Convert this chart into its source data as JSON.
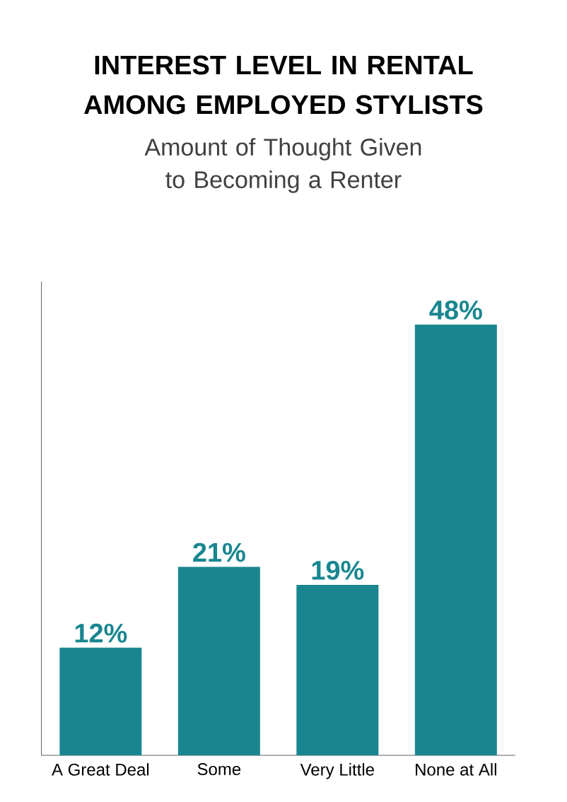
{
  "chart_data": {
    "type": "bar",
    "title": "INTEREST LEVEL IN RENTAL AMONG EMPLOYED STYLISTS",
    "subtitle": "Amount of Thought Given to Becoming a Renter",
    "categories": [
      "A Great Deal",
      "Some",
      "Very Little",
      "None at All"
    ],
    "values": [
      12,
      21,
      19,
      48
    ],
    "value_labels": [
      "12%",
      "21%",
      "19%",
      "48%"
    ],
    "color": "#19868f"
  }
}
